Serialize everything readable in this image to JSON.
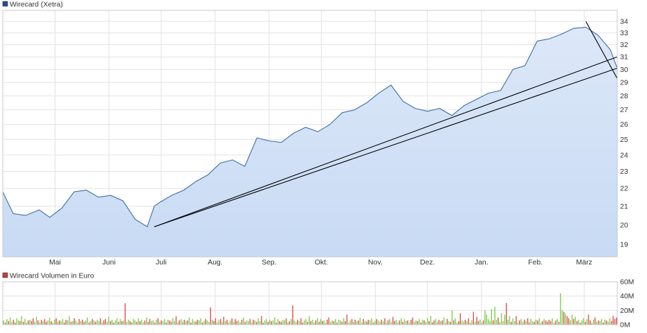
{
  "colors": {
    "price_line": "#3a6ea5",
    "price_fill_top": "#dce8f8",
    "price_fill_bottom": "#c8daf4",
    "trendline": "#000000",
    "grid": "#e2e2e2",
    "legend_price": "#1f4e96",
    "legend_volume": "#c04040",
    "vol_up": "#7bd04b",
    "vol_down": "#e05050"
  },
  "chart_data": [
    {
      "type": "line",
      "title": "",
      "legend": [
        {
          "label": "Wirecard (Xetra)",
          "color": "#1f4e96"
        }
      ],
      "xlabel": "",
      "ylabel": "",
      "x_ticks": [
        "Mai",
        "Juni",
        "Juli",
        "Aug.",
        "Sep.",
        "Okt.",
        "Nov.",
        "Dez.",
        "Jan.",
        "Feb.",
        "März"
      ],
      "y_ticks": [
        19,
        20,
        21,
        22,
        23,
        24,
        25,
        26,
        27,
        28,
        29,
        30,
        31,
        32,
        33,
        34
      ],
      "y_axis_position": "right",
      "y_scale": "log",
      "ylim": [
        18.4,
        35.0
      ],
      "grid": true,
      "series": [
        {
          "name": "Wirecard (Xetra)",
          "x": [
            "2014-04-01",
            "2014-04-07",
            "2014-04-14",
            "2014-04-22",
            "2014-04-28",
            "2014-05-05",
            "2014-05-12",
            "2014-05-19",
            "2014-05-26",
            "2014-06-02",
            "2014-06-09",
            "2014-06-16",
            "2014-06-23",
            "2014-06-27",
            "2014-06-30",
            "2014-07-07",
            "2014-07-14",
            "2014-07-21",
            "2014-07-28",
            "2014-08-04",
            "2014-08-11",
            "2014-08-18",
            "2014-08-25",
            "2014-09-01",
            "2014-09-08",
            "2014-09-15",
            "2014-09-22",
            "2014-09-29",
            "2014-10-06",
            "2014-10-13",
            "2014-10-20",
            "2014-10-27",
            "2014-11-03",
            "2014-11-10",
            "2014-11-17",
            "2014-11-24",
            "2014-12-01",
            "2014-12-08",
            "2014-12-15",
            "2014-12-22",
            "2015-01-05",
            "2015-01-12",
            "2015-01-19",
            "2015-01-26",
            "2015-02-02",
            "2015-02-09",
            "2015-02-16",
            "2015-02-23",
            "2015-03-02",
            "2015-03-09",
            "2015-03-16",
            "2015-03-20"
          ],
          "y": [
            21.8,
            20.6,
            20.5,
            20.8,
            20.4,
            20.9,
            21.8,
            21.9,
            21.5,
            21.6,
            21.3,
            20.3,
            19.9,
            21.0,
            21.2,
            21.6,
            21.9,
            22.4,
            22.8,
            23.5,
            23.7,
            23.3,
            25.1,
            24.9,
            24.8,
            25.4,
            25.8,
            25.5,
            26.0,
            26.8,
            27.0,
            27.5,
            28.2,
            28.8,
            27.6,
            27.1,
            26.9,
            27.1,
            26.6,
            27.3,
            28.2,
            28.4,
            30.0,
            30.3,
            32.3,
            32.5,
            32.9,
            33.4,
            33.5,
            32.8,
            31.6,
            30.1
          ]
        }
      ],
      "annotations": [
        {
          "type": "trendline",
          "from": {
            "x": "2014-06-27",
            "y": 19.9
          },
          "to": {
            "x": "2015-03-20",
            "y": 31.0
          }
        },
        {
          "type": "trendline",
          "from": {
            "x": "2014-06-27",
            "y": 19.9
          },
          "to": {
            "x": "2015-03-20",
            "y": 30.1
          }
        },
        {
          "type": "trendline",
          "from": {
            "x": "2015-03-02",
            "y": 34.0
          },
          "to": {
            "x": "2015-03-20",
            "y": 29.3
          }
        }
      ]
    },
    {
      "type": "bar",
      "title": "",
      "legend": [
        {
          "label": "Wirecard Volumen in Euro",
          "color": "#c04040"
        }
      ],
      "y_ticks": [
        "0M",
        "20M",
        "40M",
        "60M"
      ],
      "y_tick_values": [
        0,
        20,
        40,
        60
      ],
      "y_axis_position": "right",
      "ylim": [
        0,
        60
      ],
      "unit": "M Euro",
      "grid": true,
      "series": [
        {
          "name": "Wirecard Volumen in Euro",
          "values_millions": [
            6,
            3,
            8,
            5,
            10,
            4,
            7,
            3,
            9,
            6,
            5,
            12,
            4,
            8,
            3,
            6,
            7,
            5,
            9,
            4,
            11,
            6,
            3,
            7,
            5,
            8,
            4,
            6,
            10,
            5,
            3,
            7,
            9,
            4,
            6,
            5,
            8,
            3,
            7,
            6,
            12,
            4,
            5,
            9,
            6,
            3,
            8,
            5,
            7,
            4,
            6,
            10,
            3,
            5,
            8,
            6,
            4,
            7,
            5,
            9,
            3,
            6,
            8,
            4,
            11,
            5,
            7,
            3,
            6,
            9,
            4,
            8,
            5,
            6,
            30,
            4,
            7,
            5,
            3,
            8,
            6,
            4,
            9,
            5,
            7,
            3,
            6,
            10,
            4,
            8,
            5,
            6,
            3,
            7,
            9,
            4,
            6,
            5,
            8,
            3,
            7,
            6,
            4,
            9,
            5,
            12,
            3,
            6,
            8,
            4,
            7,
            5,
            6,
            10,
            3,
            8,
            5,
            4,
            7,
            6,
            9,
            3,
            5,
            8,
            6,
            4,
            24,
            7,
            5,
            9,
            3,
            6,
            8,
            4,
            11,
            5,
            7,
            3,
            6,
            9,
            4,
            8,
            5,
            6,
            3,
            7,
            10,
            4,
            6,
            5,
            8,
            3,
            7,
            6,
            4,
            9,
            5,
            12,
            3,
            6,
            8,
            4,
            7,
            5,
            6,
            10,
            3,
            8,
            5,
            4,
            7,
            6,
            9,
            3,
            5,
            8,
            27,
            6,
            4,
            7,
            5,
            9,
            3,
            6,
            8,
            4,
            12,
            5,
            7,
            3,
            6,
            9,
            4,
            8,
            5,
            6,
            3,
            7,
            10,
            4,
            6,
            5,
            8,
            3,
            7,
            6,
            4,
            9,
            5,
            14,
            3,
            6,
            8,
            4,
            7,
            5,
            6,
            10,
            3,
            8,
            5,
            4,
            7,
            6,
            9,
            3,
            5,
            8,
            6,
            4,
            7,
            5,
            9,
            3,
            6,
            8,
            4,
            11,
            5,
            7,
            3,
            6,
            9,
            4,
            8,
            5,
            6,
            3,
            7,
            10,
            4,
            6,
            5,
            8,
            3,
            7,
            6,
            4,
            9,
            5,
            12,
            3,
            6,
            8,
            4,
            7,
            5,
            6,
            10,
            3,
            8,
            5,
            4,
            20,
            6,
            9,
            3,
            5,
            16,
            6,
            4,
            7,
            5,
            9,
            3,
            6,
            18,
            4,
            11,
            5,
            7,
            3,
            6,
            20,
            14,
            8,
            5,
            22,
            6,
            25,
            7,
            10,
            4,
            16,
            5,
            14,
            30,
            7,
            12,
            4,
            9,
            5,
            12,
            3,
            6,
            8,
            4,
            7,
            5,
            9,
            3,
            8,
            5,
            4,
            7,
            6,
            9,
            3,
            5,
            8,
            6,
            4,
            7,
            5,
            9,
            3,
            6,
            8,
            4,
            44,
            20,
            18,
            15,
            12,
            9,
            6,
            14,
            8,
            11,
            5,
            7,
            3,
            6,
            9,
            4,
            8,
            14,
            6,
            3,
            7,
            10,
            4,
            6,
            5,
            8,
            3,
            7,
            6,
            4,
            9,
            5,
            12,
            8,
            10
          ],
          "up_flags": [
            1,
            0,
            1,
            0,
            1,
            1,
            0,
            0,
            1,
            1,
            0,
            1,
            0,
            1,
            1,
            0,
            1,
            0,
            0,
            1,
            1,
            0,
            1,
            0,
            1,
            0,
            0,
            1,
            1,
            0,
            1,
            1,
            0,
            1,
            0,
            1,
            1,
            0,
            0,
            1,
            1,
            0,
            1,
            0,
            1,
            1,
            0,
            1,
            0,
            0,
            1,
            1,
            0,
            1,
            0,
            1,
            0,
            1,
            1,
            0,
            1,
            0,
            0,
            1,
            1,
            0,
            1,
            0,
            1,
            1,
            0,
            1,
            0,
            1,
            0,
            1,
            1,
            0,
            0,
            1,
            1,
            0,
            1,
            0,
            1,
            1,
            0,
            1,
            0,
            0,
            1,
            1,
            0,
            1,
            0,
            1,
            0,
            1,
            1,
            0,
            1,
            0,
            0,
            1,
            1,
            0,
            1,
            0,
            1,
            1,
            0,
            1,
            0,
            1,
            0,
            1,
            1,
            0,
            0,
            1,
            1,
            0,
            1,
            0,
            1,
            1,
            0,
            1,
            0,
            0,
            1,
            1,
            0,
            1,
            0,
            1,
            0,
            1,
            1,
            0,
            1,
            0,
            0,
            1,
            1,
            0,
            1,
            0,
            1,
            1,
            0,
            1,
            0,
            1,
            0,
            1,
            1,
            0,
            0,
            1,
            1,
            0,
            1,
            0,
            1,
            1,
            0,
            1,
            0,
            0,
            1,
            1,
            0,
            1,
            0,
            1,
            0,
            1,
            1,
            0,
            1,
            0,
            0,
            1,
            1,
            0,
            1,
            0,
            1,
            1,
            0,
            1,
            0,
            1,
            0,
            1,
            1,
            0,
            0,
            1,
            1,
            0,
            1,
            0,
            1,
            1,
            0,
            1,
            0,
            0,
            1,
            1,
            0,
            1,
            0,
            1,
            0,
            1,
            1,
            0,
            1,
            0,
            0,
            1,
            1,
            0,
            1,
            0,
            1,
            1,
            0,
            1,
            0,
            1,
            0,
            1,
            1,
            0,
            0,
            1,
            1,
            0,
            1,
            0,
            1,
            1,
            0,
            1,
            0,
            0,
            1,
            1,
            0,
            1,
            0,
            1,
            0,
            1,
            1,
            0,
            1,
            0,
            0,
            1,
            1,
            0,
            1,
            0,
            1,
            1,
            0,
            1,
            0,
            1,
            0,
            1,
            1,
            0,
            0,
            1,
            1,
            0,
            1,
            0,
            1,
            1,
            0,
            1,
            0,
            0,
            1,
            1,
            0,
            1,
            1,
            1,
            1,
            1,
            0,
            1,
            1,
            0,
            1,
            1,
            1,
            1,
            0,
            1,
            1,
            0,
            1,
            1,
            0,
            1,
            0,
            1,
            1,
            0,
            1,
            0,
            0,
            1,
            1,
            0,
            1,
            0,
            1,
            1,
            0,
            1,
            0,
            0,
            0,
            0,
            1,
            1,
            0,
            1,
            0,
            1,
            1,
            0,
            1,
            0,
            0,
            1,
            1,
            0,
            1,
            0,
            1,
            0,
            1,
            1,
            0,
            1,
            0,
            0,
            1,
            1,
            0,
            1,
            0,
            1,
            1,
            0,
            1,
            0,
            1,
            1
          ]
        }
      ]
    }
  ]
}
